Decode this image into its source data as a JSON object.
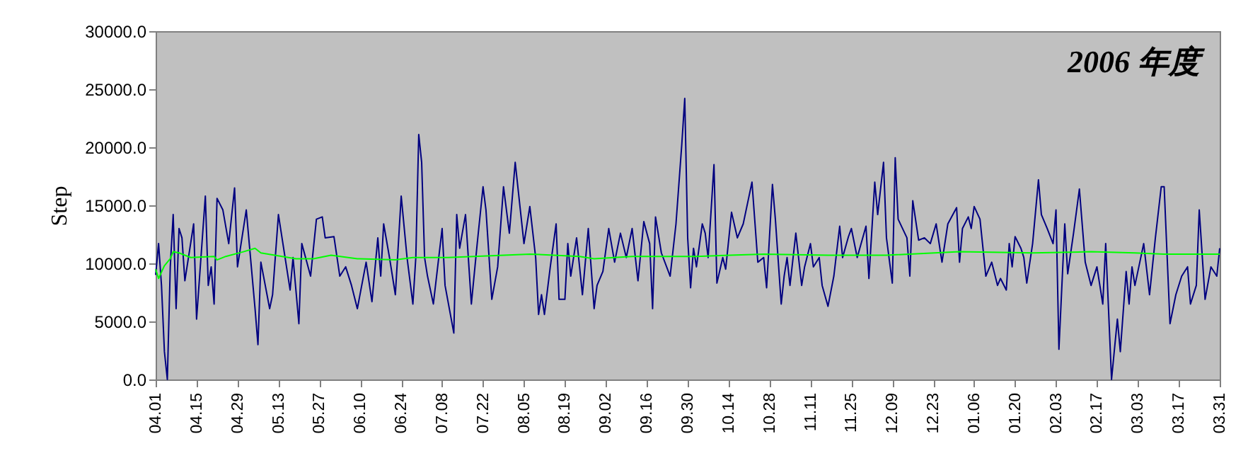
{
  "chart_data": {
    "type": "line",
    "title": "2006 年度",
    "ylabel": "Step",
    "xlim": [
      "2006-04-01",
      "2007-03-31"
    ],
    "ylim": [
      0,
      30000
    ],
    "xticks": [
      {
        "value": "2006-04-01",
        "label": "04.01"
      },
      {
        "value": "2006-04-15",
        "label": "04.15"
      },
      {
        "value": "2006-04-29",
        "label": "04.29"
      },
      {
        "value": "2006-05-13",
        "label": "05.13"
      },
      {
        "value": "2006-05-27",
        "label": "05.27"
      },
      {
        "value": "2006-06-10",
        "label": "06.10"
      },
      {
        "value": "2006-06-24",
        "label": "06.24"
      },
      {
        "value": "2006-07-08",
        "label": "07.08"
      },
      {
        "value": "2006-07-22",
        "label": "07.22"
      },
      {
        "value": "2006-08-05",
        "label": "08.05"
      },
      {
        "value": "2006-08-19",
        "label": "08.19"
      },
      {
        "value": "2006-09-02",
        "label": "09.02"
      },
      {
        "value": "2006-09-16",
        "label": "09.16"
      },
      {
        "value": "2006-09-30",
        "label": "09.30"
      },
      {
        "value": "2006-10-14",
        "label": "10.14"
      },
      {
        "value": "2006-10-28",
        "label": "10.28"
      },
      {
        "value": "2006-11-11",
        "label": "11.11"
      },
      {
        "value": "2006-11-25",
        "label": "11.25"
      },
      {
        "value": "2006-12-09",
        "label": "12.09"
      },
      {
        "value": "2006-12-23",
        "label": "12.23"
      },
      {
        "value": "2007-01-06",
        "label": "01.06"
      },
      {
        "value": "2007-01-20",
        "label": "01.20"
      },
      {
        "value": "2007-02-03",
        "label": "02.03"
      },
      {
        "value": "2007-02-17",
        "label": "02.17"
      },
      {
        "value": "2007-03-03",
        "label": "03.03"
      },
      {
        "value": "2007-03-17",
        "label": "03.17"
      },
      {
        "value": "2007-03-31",
        "label": "03.31"
      }
    ],
    "yticks": [
      {
        "value": 0,
        "label": "0.0"
      },
      {
        "value": 5000,
        "label": "5000.0"
      },
      {
        "value": 10000,
        "label": "10000.0"
      },
      {
        "value": 15000,
        "label": "15000.0"
      },
      {
        "value": 20000,
        "label": "20000.0"
      },
      {
        "value": 25000,
        "label": "25000.0"
      },
      {
        "value": 30000,
        "label": "30000.0"
      }
    ],
    "grid": false,
    "marker": "none",
    "line_style": "solid",
    "series": [
      {
        "color": "#000080",
        "x": [
          "2006-04-01",
          "2006-04-02",
          "2006-04-03",
          "2006-04-04",
          "2006-04-05",
          "2006-04-06",
          "2006-04-07",
          "2006-04-08",
          "2006-04-09",
          "2006-04-10",
          "2006-04-11",
          "2006-04-14",
          "2006-04-15",
          "2006-04-18",
          "2006-04-19",
          "2006-04-20",
          "2006-04-21",
          "2006-04-22",
          "2006-04-24",
          "2006-04-26",
          "2006-04-28",
          "2006-04-29",
          "2006-05-02",
          "2006-05-05",
          "2006-05-06",
          "2006-05-07",
          "2006-05-10",
          "2006-05-11",
          "2006-05-13",
          "2006-05-17",
          "2006-05-18",
          "2006-05-20",
          "2006-05-21",
          "2006-05-24",
          "2006-05-26",
          "2006-05-28",
          "2006-05-29",
          "2006-06-01",
          "2006-06-03",
          "2006-06-05",
          "2006-06-07",
          "2006-06-09",
          "2006-06-12",
          "2006-06-14",
          "2006-06-16",
          "2006-06-17",
          "2006-06-18",
          "2006-06-20",
          "2006-06-22",
          "2006-06-24",
          "2006-06-26",
          "2006-06-28",
          "2006-06-29",
          "2006-06-30",
          "2006-07-01",
          "2006-07-02",
          "2006-07-03",
          "2006-07-05",
          "2006-07-08",
          "2006-07-09",
          "2006-07-12",
          "2006-07-13",
          "2006-07-14",
          "2006-07-16",
          "2006-07-18",
          "2006-07-20",
          "2006-07-22",
          "2006-07-23",
          "2006-07-25",
          "2006-07-27",
          "2006-07-29",
          "2006-07-31",
          "2006-08-02",
          "2006-08-05",
          "2006-08-07",
          "2006-08-09",
          "2006-08-10",
          "2006-08-11",
          "2006-08-12",
          "2006-08-14",
          "2006-08-16",
          "2006-08-17",
          "2006-08-19",
          "2006-08-20",
          "2006-08-21",
          "2006-08-23",
          "2006-08-25",
          "2006-08-27",
          "2006-08-29",
          "2006-08-30",
          "2006-09-01",
          "2006-09-03",
          "2006-09-05",
          "2006-09-07",
          "2006-09-09",
          "2006-09-11",
          "2006-09-13",
          "2006-09-15",
          "2006-09-17",
          "2006-09-18",
          "2006-09-19",
          "2006-09-21",
          "2006-09-24",
          "2006-09-26",
          "2006-09-28",
          "2006-09-29",
          "2006-09-30",
          "2006-10-01",
          "2006-10-02",
          "2006-10-03",
          "2006-10-05",
          "2006-10-06",
          "2006-10-07",
          "2006-10-09",
          "2006-10-10",
          "2006-10-12",
          "2006-10-13",
          "2006-10-15",
          "2006-10-17",
          "2006-10-19",
          "2006-10-21",
          "2006-10-22",
          "2006-10-24",
          "2006-10-26",
          "2006-10-27",
          "2006-10-29",
          "2006-10-30",
          "2006-11-01",
          "2006-11-02",
          "2006-11-03",
          "2006-11-04",
          "2006-11-06",
          "2006-11-08",
          "2006-11-09",
          "2006-11-11",
          "2006-11-12",
          "2006-11-14",
          "2006-11-15",
          "2006-11-17",
          "2006-11-19",
          "2006-11-21",
          "2006-11-22",
          "2006-11-24",
          "2006-11-25",
          "2006-11-27",
          "2006-11-30",
          "2006-12-01",
          "2006-12-03",
          "2006-12-04",
          "2006-12-06",
          "2006-12-07",
          "2006-12-09",
          "2006-12-10",
          "2006-12-11",
          "2006-12-14",
          "2006-12-15",
          "2006-12-16",
          "2006-12-18",
          "2006-12-20",
          "2006-12-22",
          "2006-12-24",
          "2006-12-26",
          "2006-12-28",
          "2006-12-31",
          "2007-01-01",
          "2007-01-02",
          "2007-01-04",
          "2007-01-05",
          "2007-01-06",
          "2007-01-08",
          "2007-01-10",
          "2007-01-12",
          "2007-01-14",
          "2007-01-15",
          "2007-01-17",
          "2007-01-18",
          "2007-01-19",
          "2007-01-20",
          "2007-01-22",
          "2007-01-23",
          "2007-01-24",
          "2007-01-26",
          "2007-01-28",
          "2007-01-29",
          "2007-01-31",
          "2007-02-02",
          "2007-02-03",
          "2007-02-04",
          "2007-02-06",
          "2007-02-07",
          "2007-02-09",
          "2007-02-11",
          "2007-02-13",
          "2007-02-15",
          "2007-02-17",
          "2007-02-19",
          "2007-02-20",
          "2007-02-22",
          "2007-02-24",
          "2007-02-25",
          "2007-02-27",
          "2007-02-28",
          "2007-03-01",
          "2007-03-02",
          "2007-03-05",
          "2007-03-07",
          "2007-03-09",
          "2007-03-11",
          "2007-03-12",
          "2007-03-14",
          "2007-03-16",
          "2007-03-18",
          "2007-03-20",
          "2007-03-21",
          "2007-03-23",
          "2007-03-24",
          "2007-03-26",
          "2007-03-28",
          "2007-03-30",
          "2007-03-31"
        ],
        "values": [
          9000,
          11700,
          8100,
          2400,
          0,
          9700,
          14200,
          6100,
          13000,
          12200,
          8500,
          13400,
          5200,
          15800,
          8100,
          9700,
          6500,
          15600,
          14600,
          11700,
          16500,
          9700,
          14600,
          6100,
          3000,
          10100,
          6100,
          7300,
          14200,
          7700,
          10500,
          4800,
          11700,
          8900,
          13800,
          14000,
          12200,
          12300,
          8900,
          9700,
          8100,
          6100,
          10100,
          6700,
          12200,
          8900,
          13400,
          10500,
          7300,
          15800,
          10500,
          6500,
          10500,
          21100,
          18700,
          10500,
          8900,
          6500,
          13000,
          8100,
          4000,
          14200,
          11300,
          14200,
          6500,
          11700,
          16600,
          14600,
          6900,
          9700,
          16600,
          12600,
          18700,
          11700,
          14900,
          10500,
          5600,
          7300,
          5600,
          9700,
          13400,
          6900,
          6900,
          11700,
          8900,
          12200,
          7300,
          13000,
          6100,
          8100,
          9300,
          13000,
          10100,
          12600,
          10500,
          13000,
          8500,
          13600,
          11700,
          6100,
          14000,
          10900,
          8900,
          13400,
          20300,
          24200,
          12200,
          7900,
          11300,
          9700,
          13400,
          12600,
          10500,
          18500,
          8300,
          10500,
          9500,
          14400,
          12200,
          13400,
          15800,
          17000,
          10100,
          10500,
          7900,
          16800,
          13800,
          6500,
          8900,
          10500,
          8100,
          12600,
          8100,
          9700,
          11700,
          9700,
          10500,
          8100,
          6300,
          8900,
          13200,
          10500,
          12300,
          13000,
          10500,
          13200,
          8700,
          17000,
          14200,
          18700,
          12200,
          8300,
          19100,
          13800,
          12200,
          8900,
          15400,
          12000,
          12200,
          11700,
          13400,
          10100,
          13400,
          14800,
          10100,
          13000,
          14000,
          13000,
          14900,
          13800,
          8900,
          10100,
          8100,
          8700,
          7700,
          11700,
          9700,
          12300,
          11300,
          10500,
          8300,
          11700,
          17200,
          14200,
          13000,
          11700,
          14600,
          2600,
          13400,
          9100,
          12600,
          16400,
          10100,
          8100,
          9700,
          6500,
          11700,
          0,
          5200,
          2400,
          9300,
          6500,
          9700,
          8100,
          11700,
          7300,
          12200,
          16600,
          16600,
          4800,
          7300,
          8900,
          9700,
          6500,
          8100,
          14600,
          6900,
          9700,
          8900,
          11300
        ]
      },
      {
        "color": "#00ff00",
        "x": [
          "2006-04-01",
          "2006-04-02",
          "2006-04-04",
          "2006-04-06",
          "2006-04-07",
          "2006-04-09",
          "2006-04-13",
          "2006-04-21",
          "2006-04-22",
          "2006-04-25",
          "2006-05-01",
          "2006-05-05",
          "2006-05-07",
          "2006-05-19",
          "2006-05-25",
          "2006-05-31",
          "2006-06-09",
          "2006-06-22",
          "2006-06-28",
          "2006-07-10",
          "2006-08-07",
          "2006-08-24",
          "2006-08-29",
          "2006-09-11",
          "2006-10-03",
          "2006-10-26",
          "2006-11-17",
          "2006-12-07",
          "2007-01-01",
          "2007-01-26",
          "2007-02-15",
          "2007-03-02",
          "2007-03-12",
          "2007-03-31"
        ],
        "values": [
          9500,
          8700,
          9800,
          10400,
          11000,
          10900,
          10500,
          10600,
          10300,
          10600,
          11000,
          11300,
          10900,
          10400,
          10400,
          10700,
          10400,
          10300,
          10500,
          10500,
          10800,
          10600,
          10400,
          10600,
          10600,
          10800,
          10700,
          10700,
          11000,
          10900,
          11000,
          10900,
          10800,
          10800
        ]
      }
    ]
  }
}
